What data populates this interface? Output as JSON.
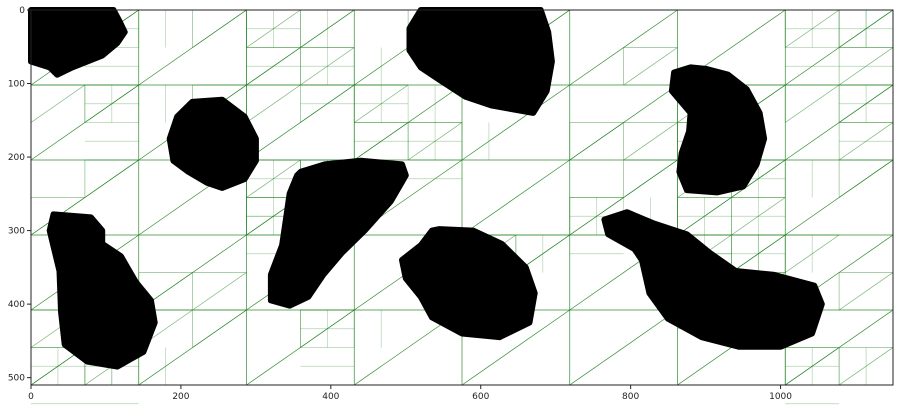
{
  "chart_data": {
    "type": "image",
    "x_ticks": [
      0,
      200,
      400,
      600,
      800,
      1000
    ],
    "y_ticks": [
      0,
      100,
      200,
      300,
      400,
      500
    ],
    "xlim": [
      0,
      1150
    ],
    "ylim": [
      510,
      0
    ],
    "grid_line_color": "#1a7f1a",
    "blob_color": "#000000",
    "blobs": [
      {
        "name": "blob-top-left",
        "points": [
          [
            0,
            0
          ],
          [
            110,
            0
          ],
          [
            118,
            15
          ],
          [
            125,
            30
          ],
          [
            115,
            45
          ],
          [
            95,
            62
          ],
          [
            55,
            78
          ],
          [
            35,
            88
          ],
          [
            25,
            78
          ],
          [
            0,
            70
          ]
        ]
      },
      {
        "name": "blob-upper-left-center",
        "points": [
          [
            215,
            125
          ],
          [
            255,
            122
          ],
          [
            285,
            145
          ],
          [
            300,
            175
          ],
          [
            300,
            205
          ],
          [
            285,
            230
          ],
          [
            255,
            242
          ],
          [
            235,
            235
          ],
          [
            210,
            220
          ],
          [
            190,
            205
          ],
          [
            185,
            175
          ],
          [
            195,
            145
          ],
          [
            215,
            125
          ]
        ]
      },
      {
        "name": "blob-top-center",
        "points": [
          [
            530,
            0
          ],
          [
            680,
            0
          ],
          [
            690,
            30
          ],
          [
            695,
            70
          ],
          [
            688,
            110
          ],
          [
            670,
            140
          ],
          [
            615,
            130
          ],
          [
            580,
            118
          ],
          [
            545,
            95
          ],
          [
            520,
            78
          ],
          [
            505,
            55
          ],
          [
            505,
            25
          ],
          [
            520,
            0
          ]
        ]
      },
      {
        "name": "blob-right-upper",
        "points": [
          [
            900,
            80
          ],
          [
            930,
            88
          ],
          [
            955,
            108
          ],
          [
            972,
            140
          ],
          [
            978,
            175
          ],
          [
            968,
            210
          ],
          [
            950,
            240
          ],
          [
            915,
            248
          ],
          [
            875,
            245
          ],
          [
            865,
            220
          ],
          [
            868,
            195
          ],
          [
            878,
            165
          ],
          [
            880,
            140
          ],
          [
            855,
            110
          ],
          [
            858,
            85
          ],
          [
            880,
            78
          ]
        ]
      },
      {
        "name": "blob-left-bottom",
        "points": [
          [
            30,
            278
          ],
          [
            80,
            282
          ],
          [
            95,
            300
          ],
          [
            95,
            318
          ],
          [
            120,
            335
          ],
          [
            140,
            370
          ],
          [
            160,
            395
          ],
          [
            165,
            425
          ],
          [
            150,
            465
          ],
          [
            115,
            485
          ],
          [
            75,
            478
          ],
          [
            45,
            455
          ],
          [
            40,
            410
          ],
          [
            38,
            355
          ],
          [
            25,
            300
          ]
        ]
      },
      {
        "name": "blob-center-diagonal",
        "points": [
          [
            360,
            220
          ],
          [
            392,
            210
          ],
          [
            440,
            205
          ],
          [
            495,
            210
          ],
          [
            500,
            225
          ],
          [
            480,
            260
          ],
          [
            445,
            300
          ],
          [
            415,
            330
          ],
          [
            390,
            360
          ],
          [
            370,
            390
          ],
          [
            345,
            402
          ],
          [
            320,
            395
          ],
          [
            320,
            360
          ],
          [
            335,
            320
          ],
          [
            340,
            285
          ],
          [
            345,
            250
          ],
          [
            355,
            225
          ]
        ]
      },
      {
        "name": "blob-center-bottom",
        "points": [
          [
            545,
            298
          ],
          [
            590,
            300
          ],
          [
            628,
            318
          ],
          [
            660,
            350
          ],
          [
            672,
            385
          ],
          [
            665,
            425
          ],
          [
            625,
            445
          ],
          [
            575,
            440
          ],
          [
            535,
            418
          ],
          [
            520,
            390
          ],
          [
            500,
            365
          ],
          [
            495,
            340
          ],
          [
            520,
            320
          ],
          [
            535,
            300
          ]
        ]
      },
      {
        "name": "blob-right-bottom",
        "points": [
          [
            795,
            275
          ],
          [
            830,
            290
          ],
          [
            875,
            305
          ],
          [
            905,
            330
          ],
          [
            940,
            355
          ],
          [
            990,
            360
          ],
          [
            1045,
            375
          ],
          [
            1055,
            400
          ],
          [
            1042,
            440
          ],
          [
            1000,
            458
          ],
          [
            945,
            458
          ],
          [
            895,
            445
          ],
          [
            850,
            420
          ],
          [
            825,
            385
          ],
          [
            815,
            340
          ],
          [
            805,
            325
          ],
          [
            770,
            305
          ],
          [
            765,
            285
          ]
        ]
      }
    ]
  }
}
